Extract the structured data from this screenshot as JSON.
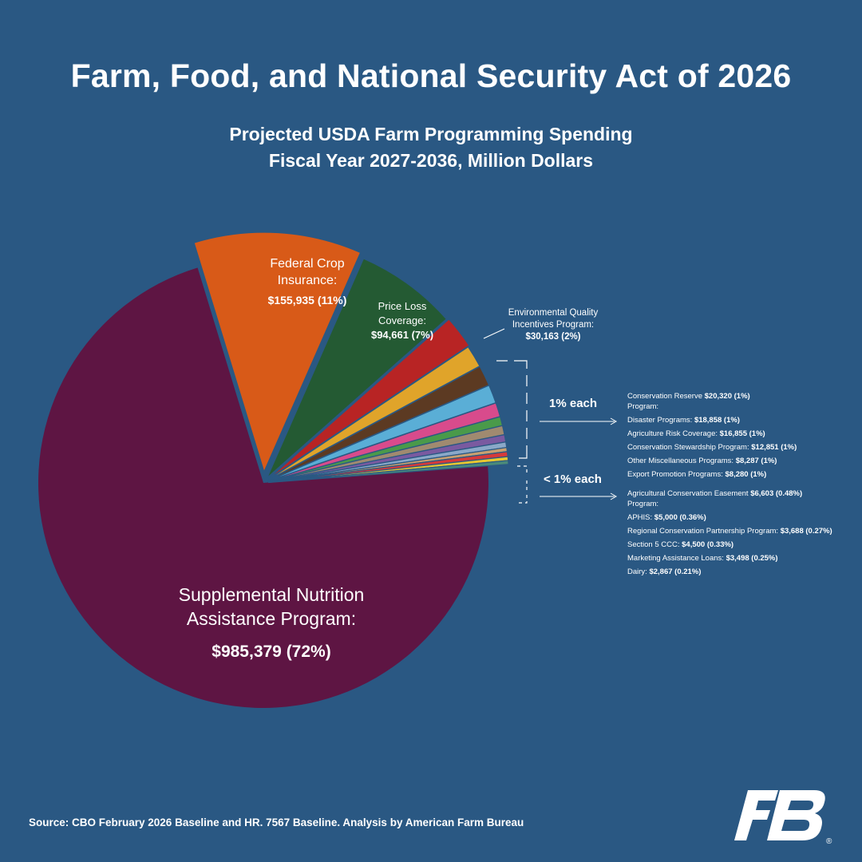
{
  "title": "Farm, Food, and National Security Act of 2026",
  "subtitle_line1": "Projected USDA Farm Programming Spending",
  "subtitle_line2": "Fiscal Year 2027-2036, Million Dollars",
  "source": "Source: CBO February 2026 Baseline and HR. 7567 Baseline. Analysis by American Farm Bureau",
  "colors": {
    "background": "#2a5883",
    "snap": "#5e1543",
    "crop_insurance": "#d85a18",
    "plc": "#245a33",
    "eqip": "#b82424"
  },
  "chart_data": {
    "type": "pie",
    "title": "Projected USDA Farm Programming Spending",
    "subtitle": "Fiscal Year 2027-2036, Million Dollars",
    "slices": [
      {
        "label": "Supplemental Nutrition Assistance Program",
        "value": 985379,
        "percent": "72%",
        "color": "#5e1543"
      },
      {
        "label": "Federal Crop Insurance",
        "value": 155935,
        "percent": "11%",
        "color": "#d85a18"
      },
      {
        "label": "Price Loss Coverage",
        "value": 94661,
        "percent": "7%",
        "color": "#245a33"
      },
      {
        "label": "Environmental Quality Incentives Program",
        "value": 30163,
        "percent": "2%",
        "color": "#b82424"
      },
      {
        "label": "Conservation Reserve Program",
        "value": 20320,
        "percent": "1%",
        "color": "#e0a42a"
      },
      {
        "label": "Disaster Programs",
        "value": 18858,
        "percent": "1%",
        "color": "#5c3a22"
      },
      {
        "label": "Agriculture Risk Coverage",
        "value": 16855,
        "percent": "1%",
        "color": "#5aaed6"
      },
      {
        "label": "Conservation Stewardship Program",
        "value": 12851,
        "percent": "1%",
        "color": "#d84b8c"
      },
      {
        "label": "Other Miscellaneous Programs",
        "value": 8287,
        "percent": "1%",
        "color": "#4a9a4a"
      },
      {
        "label": "Export Promotion Programs",
        "value": 8280,
        "percent": "1%",
        "color": "#a08a70"
      },
      {
        "label": "Agricultural Conservation Easement Program",
        "value": 6603,
        "percent": "0.48%",
        "color": "#7a5aa0"
      },
      {
        "label": "APHIS",
        "value": 5000,
        "percent": "0.36%",
        "color": "#8aa8c8"
      },
      {
        "label": "Regional Conservation Partnership Program",
        "value": 3688,
        "percent": "0.27%",
        "color": "#c8a070"
      },
      {
        "label": "Section 5 CCC",
        "value": 4500,
        "percent": "0.33%",
        "color": "#d63a3a"
      },
      {
        "label": "Marketing Assistance Loans",
        "value": 3498,
        "percent": "0.25%",
        "color": "#e8c830"
      },
      {
        "label": "Dairy",
        "value": 2867,
        "percent": "0.21%",
        "color": "#4a8a7a"
      }
    ],
    "callouts": {
      "snap_name_line1": "Supplemental Nutrition",
      "snap_name_line2": "Assistance Program:",
      "snap_value": "$985,379 (72%)",
      "fci_name_line1": "Federal Crop",
      "fci_name_line2": "Insurance:",
      "fci_value": "$155,935 (11%)",
      "plc_name_line1": "Price Loss",
      "plc_name_line2": "Coverage:",
      "plc_value": "$94,661 (7%)",
      "eqip_name_line1": "Environmental Quality",
      "eqip_name_line2": "Incentives Program:",
      "eqip_value": "$30,163 (2%)"
    },
    "group_1pct": {
      "label": "1% each",
      "items": [
        {
          "line1": "Conservation Reserve",
          "value": "$20,320 (1%)",
          "line2": "Program:"
        },
        {
          "line1": "Disaster Programs:",
          "value": "$18,858 (1%)"
        },
        {
          "line1": "Agriculture Risk Coverage:",
          "value": "$16,855 (1%)"
        },
        {
          "line1": "Conservation Stewardship Program:",
          "value": "$12,851 (1%)"
        },
        {
          "line1": "Other Miscellaneous Programs:",
          "value": "$8,287 (1%)"
        },
        {
          "line1": "Export Promotion Programs:",
          "value": "$8,280 (1%)"
        }
      ]
    },
    "group_lt1pct": {
      "label": "< 1% each",
      "items": [
        {
          "line1": "Agricultural Conservation Easement",
          "value": "$6,603 (0.48%)",
          "line2": "Program:"
        },
        {
          "line1": "APHIS:",
          "value": "$5,000 (0.36%)"
        },
        {
          "line1": "Regional Conservation Partnership Program:",
          "value": "$3,688 (0.27%)"
        },
        {
          "line1": "Section 5 CCC:",
          "value": "$4,500 (0.33%)"
        },
        {
          "line1": "Marketing Assistance Loans:",
          "value": "$3,498 (0.25%)"
        },
        {
          "line1": "Dairy:",
          "value": "$2,867 (0.21%)"
        }
      ]
    }
  },
  "logo": {
    "icon": "american-farm-bureau-logo",
    "text": "FB",
    "mark": "®"
  }
}
